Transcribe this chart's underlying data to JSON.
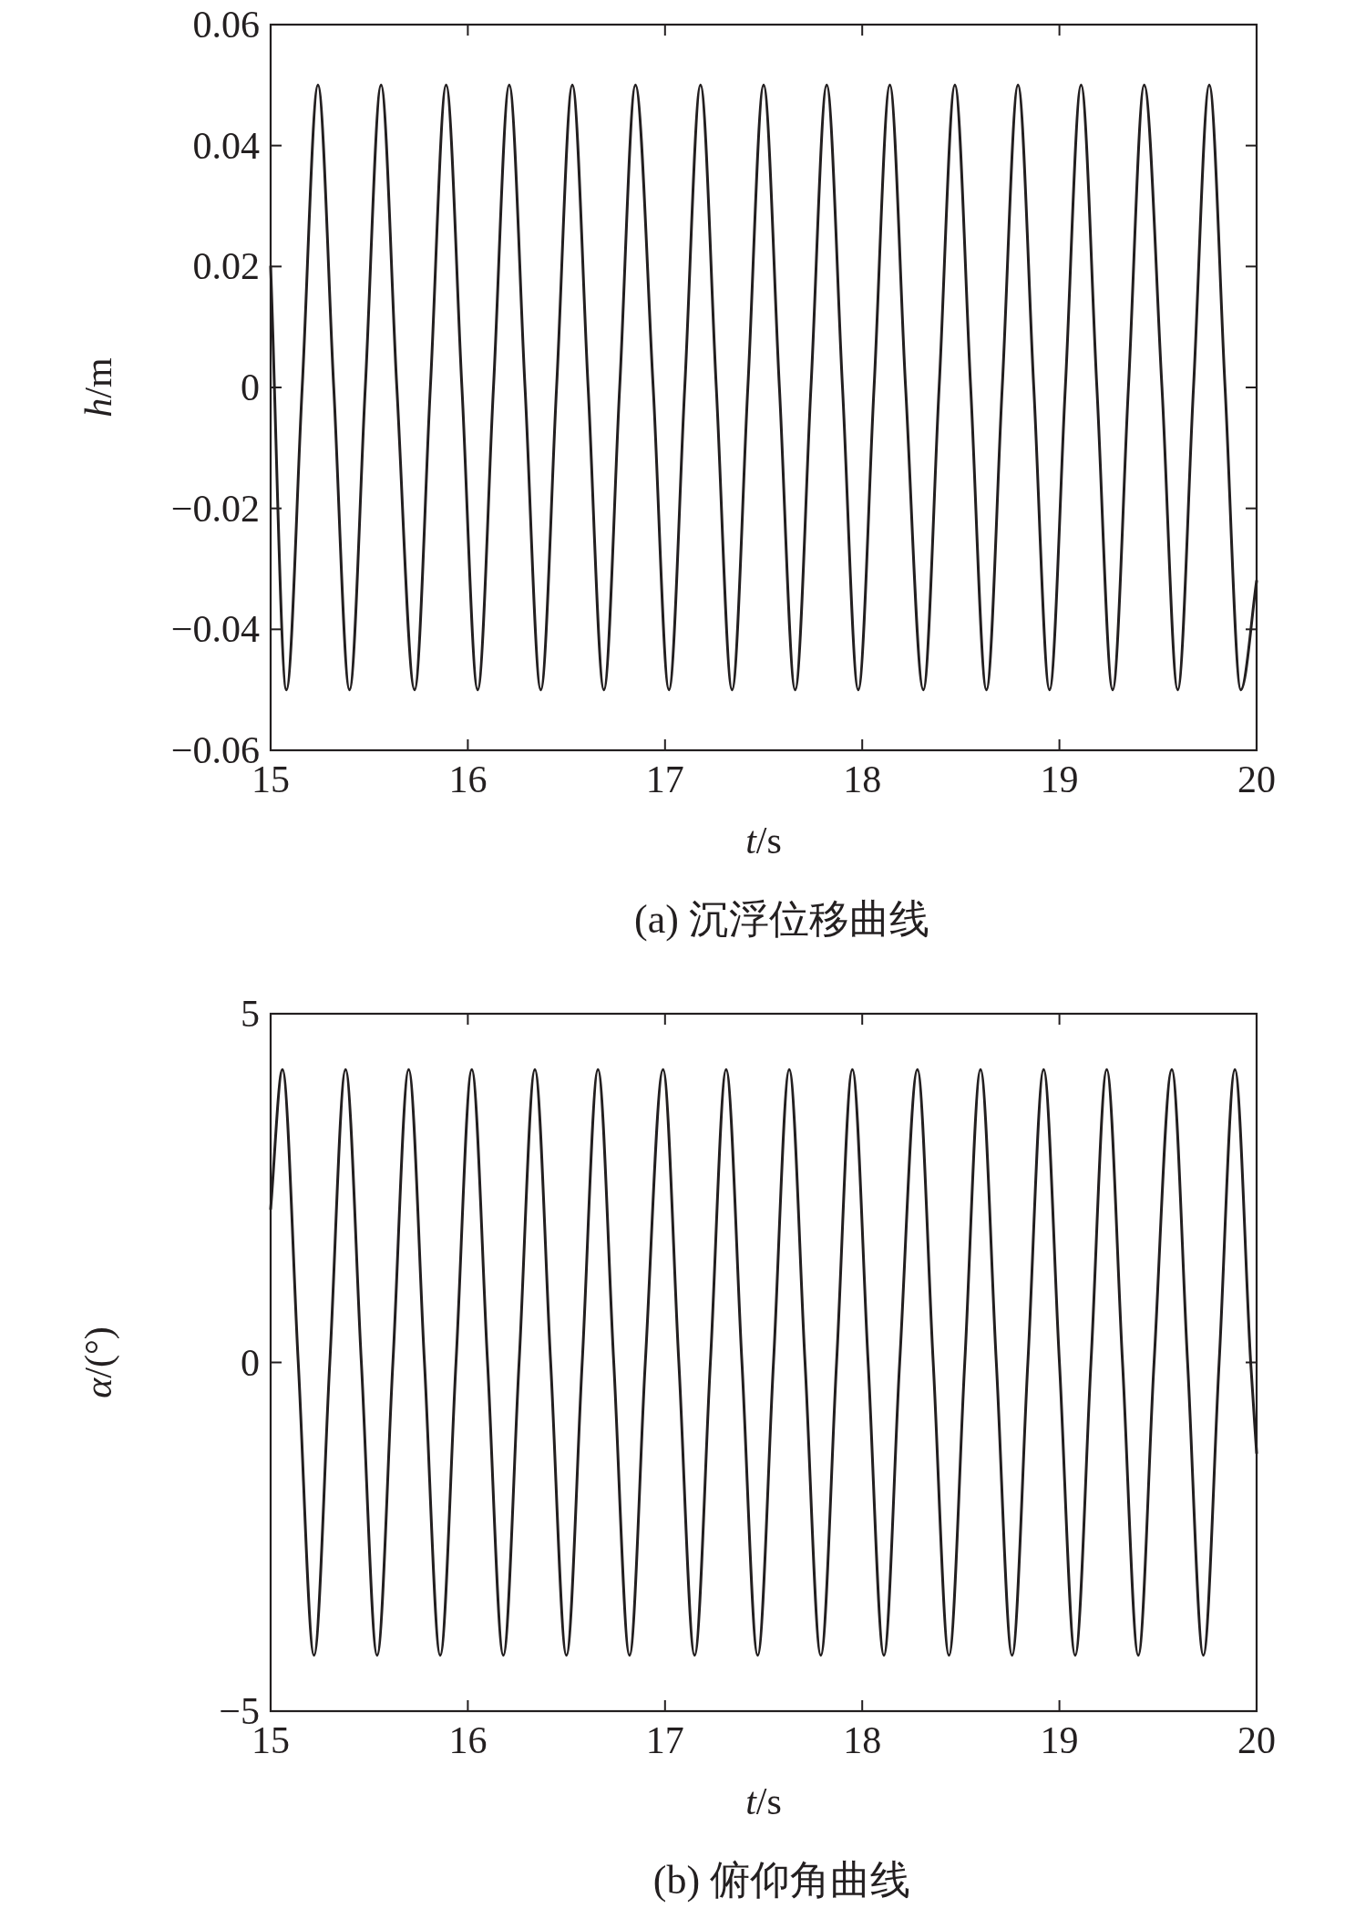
{
  "chart_data": [
    {
      "type": "line",
      "title": "(a) 沉浮位移曲线",
      "xlabel": "*t*/s",
      "ylabel": "*h*/m",
      "xlim": [
        15,
        20
      ],
      "ylim": [
        -0.06,
        0.06
      ],
      "xticks": [
        15,
        16,
        17,
        18,
        19,
        20
      ],
      "yticks": [
        {
          "value": -0.06,
          "label": "−0.06"
        },
        {
          "value": -0.04,
          "label": "−0.04"
        },
        {
          "value": -0.02,
          "label": "−0.02"
        },
        0,
        0.02,
        0.04,
        0.06
      ],
      "grid": false,
      "series": [
        {
          "color": "#231f20",
          "x": [
            15,
            15.08,
            15.16,
            15.24,
            15.32,
            15.4,
            15.48,
            15.56,
            15.64,
            15.73,
            15.81,
            15.89,
            15.97,
            16.05,
            16.13,
            16.21,
            16.29,
            16.37,
            16.45,
            16.53,
            16.61,
            16.69,
            16.77,
            16.85,
            16.94,
            17.02,
            17.1,
            17.18,
            17.26,
            17.34,
            17.42,
            17.5,
            17.58,
            17.66,
            17.74,
            17.82,
            17.9,
            17.98,
            18.06,
            18.14,
            18.22,
            18.31,
            18.39,
            18.47,
            18.55,
            18.63,
            18.71,
            18.79,
            18.87,
            18.95,
            19.03,
            19.11,
            19.19,
            19.27,
            19.35,
            19.43,
            19.52,
            19.6,
            19.68,
            19.76,
            19.84,
            19.92,
            20
          ],
          "values": [
            0.02,
            -0.05,
            0,
            0.05,
            0,
            -0.05,
            0,
            0.05,
            0,
            -0.05,
            0,
            0.05,
            0,
            -0.05,
            0,
            0.05,
            0,
            -0.05,
            0,
            0.05,
            0,
            -0.05,
            0,
            0.05,
            0,
            -0.05,
            0,
            0.05,
            0,
            -0.05,
            0,
            0.05,
            0,
            -0.05,
            0,
            0.05,
            0,
            -0.05,
            0,
            0.05,
            0,
            -0.05,
            0,
            0.05,
            0,
            -0.05,
            0,
            0.05,
            0,
            -0.05,
            0,
            0.05,
            0,
            -0.05,
            0,
            0.05,
            0,
            -0.05,
            0,
            0.05,
            0,
            -0.05,
            -0.032
          ]
        }
      ]
    },
    {
      "type": "line",
      "title": "(b) 俯仰角曲线",
      "xlabel": "*t*/s",
      "ylabel": "*α*/(°)",
      "xlim": [
        15,
        20
      ],
      "ylim": [
        -5,
        5
      ],
      "xticks": [
        15,
        16,
        17,
        18,
        19,
        20
      ],
      "yticks": [
        {
          "value": -5,
          "label": "−5"
        },
        0,
        5
      ],
      "grid": false,
      "series": [
        {
          "color": "#231f20",
          "x": [
            15,
            15.06,
            15.14,
            15.22,
            15.3,
            15.38,
            15.46,
            15.54,
            15.62,
            15.7,
            15.78,
            15.86,
            15.94,
            16.02,
            16.1,
            16.18,
            16.26,
            16.34,
            16.42,
            16.5,
            16.58,
            16.66,
            16.74,
            16.82,
            16.9,
            16.99,
            17.07,
            17.15,
            17.23,
            17.31,
            17.39,
            17.47,
            17.55,
            17.63,
            17.71,
            17.79,
            17.87,
            17.95,
            18.03,
            18.11,
            18.19,
            18.28,
            18.36,
            18.44,
            18.52,
            18.6,
            18.68,
            18.76,
            18.84,
            18.92,
            19.0,
            19.08,
            19.16,
            19.24,
            19.32,
            19.4,
            19.48,
            19.57,
            19.65,
            19.73,
            19.81,
            19.89,
            19.97,
            20
          ],
          "values": [
            2.2,
            4.2,
            0,
            -4.2,
            0,
            4.2,
            0,
            -4.2,
            0,
            4.2,
            0,
            -4.2,
            0,
            4.2,
            0,
            -4.2,
            0,
            4.2,
            0,
            -4.2,
            0,
            4.2,
            0,
            -4.2,
            0,
            4.2,
            0,
            -4.2,
            0,
            4.2,
            0,
            -4.2,
            0,
            4.2,
            0,
            -4.2,
            0,
            4.2,
            0,
            -4.2,
            0,
            4.2,
            0,
            -4.2,
            0,
            4.2,
            0,
            -4.2,
            0,
            4.2,
            0,
            -4.2,
            0,
            4.2,
            0,
            -4.2,
            0,
            4.2,
            0,
            -4.2,
            0,
            4.2,
            0,
            -1.3
          ]
        }
      ]
    }
  ]
}
